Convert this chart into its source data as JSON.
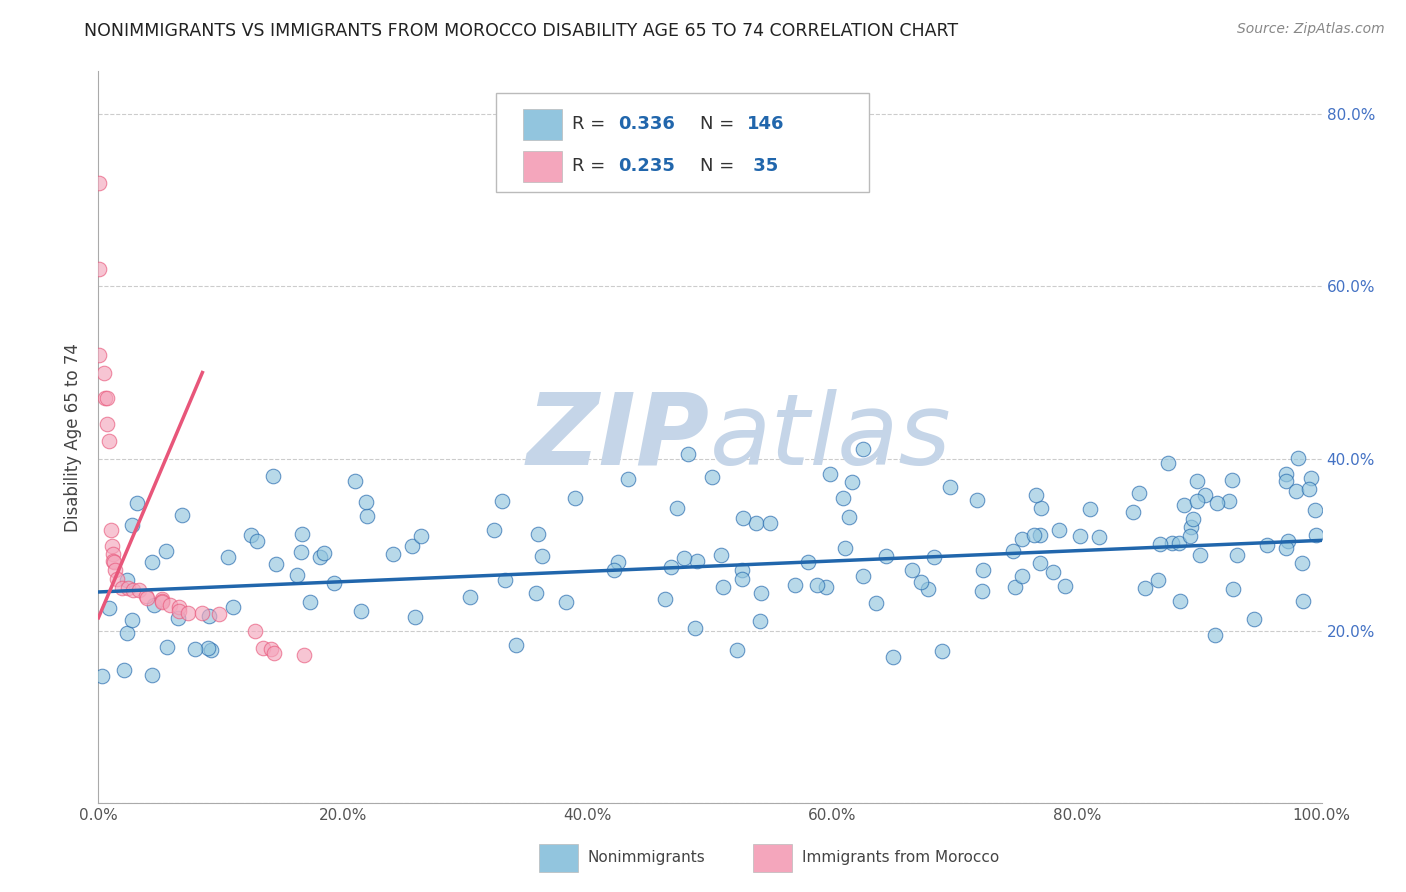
{
  "title": "NONIMMIGRANTS VS IMMIGRANTS FROM MOROCCO DISABILITY AGE 65 TO 74 CORRELATION CHART",
  "source": "Source: ZipAtlas.com",
  "ylabel": "Disability Age 65 to 74",
  "xlim": [
    0.0,
    1.0
  ],
  "ylim": [
    0.0,
    0.85
  ],
  "xticklabels": [
    "0.0%",
    "20.0%",
    "40.0%",
    "60.0%",
    "80.0%",
    "100.0%"
  ],
  "yticks_left": [
    0.0,
    0.2,
    0.4,
    0.6,
    0.8
  ],
  "yticklabels_left": [
    "",
    "",
    "",
    "",
    ""
  ],
  "yticks_right": [
    0.2,
    0.4,
    0.6,
    0.8
  ],
  "yticklabels_right": [
    "20.0%",
    "40.0%",
    "60.0%",
    "80.0%"
  ],
  "blue_color": "#92c5de",
  "pink_color": "#f4a6bc",
  "blue_line_color": "#2166ac",
  "pink_line_color": "#e8567a",
  "watermark_zip_color": "#c5d5e8",
  "watermark_atlas_color": "#c5d5e8",
  "legend_r1_label": "R = ",
  "legend_r1_val": "0.336",
  "legend_n1_label": "N = ",
  "legend_n1_val": "146",
  "legend_r2_label": "R = ",
  "legend_r2_val": "0.235",
  "legend_n2_label": "N = ",
  "legend_n2_val": " 35",
  "legend_label1": "Nonimmigrants",
  "legend_label2": "Immigrants from Morocco",
  "blue_trend_x0": 0.0,
  "blue_trend_x1": 1.0,
  "blue_trend_y0": 0.245,
  "blue_trend_y1": 0.305,
  "pink_trend_x0": 0.0,
  "pink_trend_x1": 0.085,
  "pink_trend_y0": 0.215,
  "pink_trend_y1": 0.5,
  "grid_color": "#cccccc",
  "background_color": "#ffffff",
  "blue_seed": 42,
  "pink_seed": 99
}
